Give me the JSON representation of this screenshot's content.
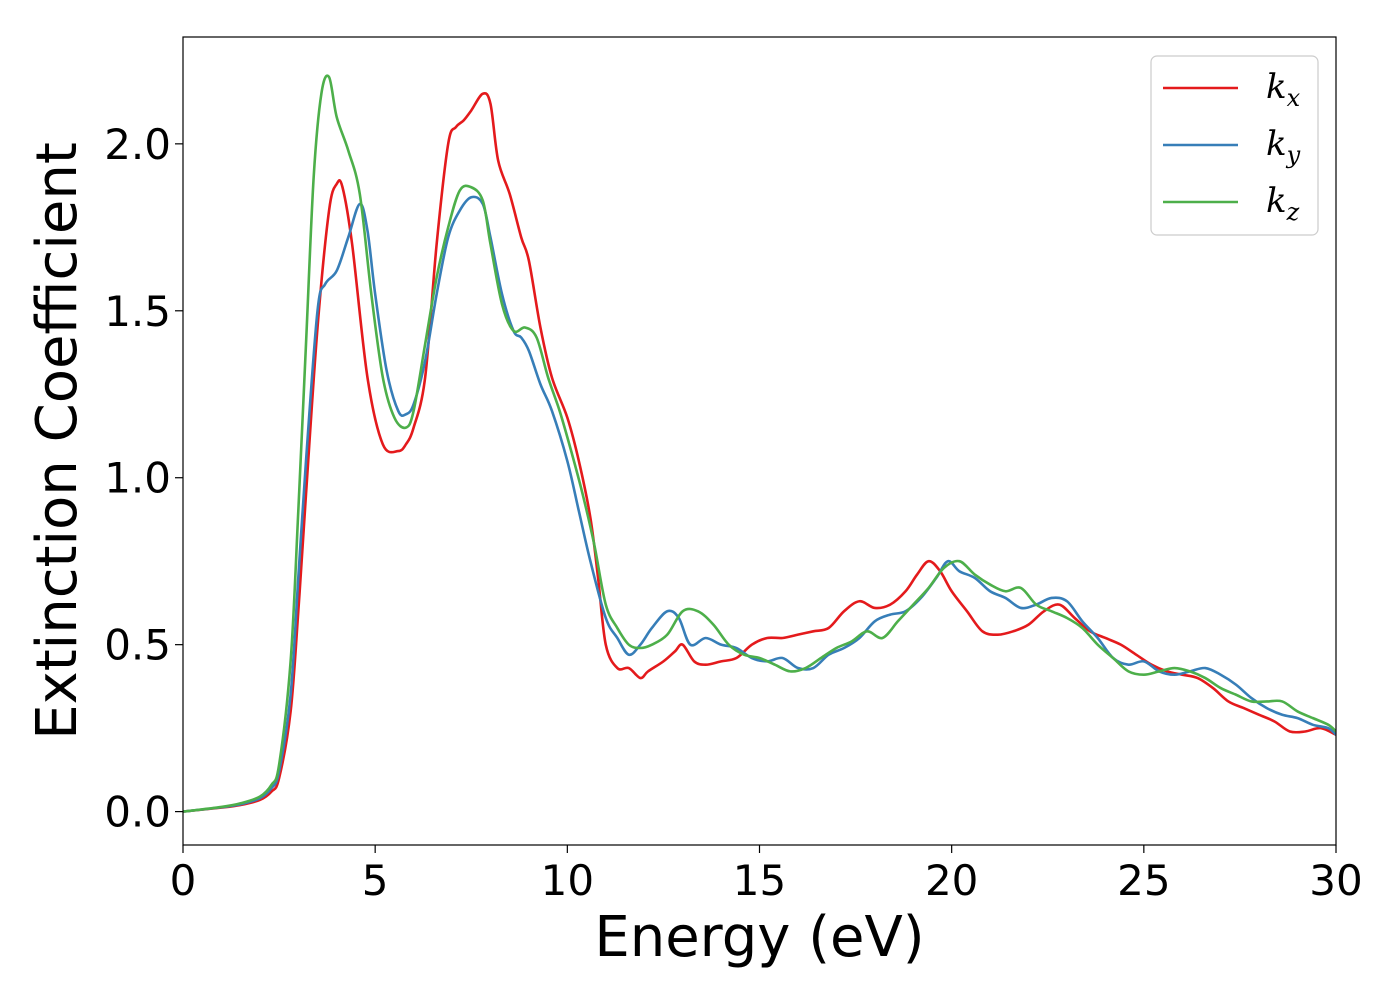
{
  "chart_data": {
    "type": "line",
    "xlabel": "Energy (eV)",
    "ylabel": "Extinction Coefficient",
    "xlim": [
      0,
      30
    ],
    "ylim": [
      -0.1,
      2.32
    ],
    "xticks": [
      0,
      5,
      10,
      15,
      20,
      25,
      30
    ],
    "yticks": [
      0.0,
      0.5,
      1.0,
      1.5,
      2.0
    ],
    "xtick_labels": [
      "0",
      "5",
      "10",
      "15",
      "20",
      "25",
      "30"
    ],
    "ytick_labels": [
      "0.0",
      "0.5",
      "1.0",
      "1.5",
      "2.0"
    ],
    "grid": false,
    "legend_position": "top-right",
    "series": [
      {
        "name": "k",
        "subscript": "x",
        "color": "#e41a1c",
        "x": [
          0,
          1,
          1.5,
          2,
          2.3,
          2.5,
          2.8,
          3.0,
          3.2,
          3.5,
          3.8,
          4.0,
          4.15,
          4.4,
          4.8,
          5.2,
          5.6,
          5.8,
          6.0,
          6.3,
          6.6,
          6.9,
          7.1,
          7.3,
          7.5,
          7.8,
          8.0,
          8.2,
          8.5,
          8.8,
          9.0,
          9.3,
          9.6,
          10.0,
          10.3,
          10.6,
          10.8,
          11.0,
          11.3,
          11.6,
          11.9,
          12.1,
          12.5,
          12.8,
          13.0,
          13.3,
          13.6,
          14.0,
          14.4,
          14.8,
          15.2,
          15.6,
          16.0,
          16.4,
          16.8,
          17.2,
          17.6,
          18.0,
          18.4,
          18.8,
          19.1,
          19.4,
          19.7,
          20.0,
          20.4,
          20.8,
          21.2,
          21.6,
          22.0,
          22.4,
          22.8,
          23.2,
          23.6,
          24.0,
          24.4,
          24.8,
          25.2,
          25.6,
          26.0,
          26.4,
          26.8,
          27.2,
          27.6,
          28.0,
          28.4,
          28.8,
          29.2,
          29.6,
          30
        ],
        "y": [
          0,
          0.012,
          0.02,
          0.035,
          0.06,
          0.1,
          0.3,
          0.6,
          0.95,
          1.45,
          1.8,
          1.88,
          1.87,
          1.7,
          1.3,
          1.1,
          1.08,
          1.1,
          1.15,
          1.3,
          1.7,
          2.0,
          2.05,
          2.07,
          2.1,
          2.15,
          2.12,
          1.95,
          1.85,
          1.72,
          1.65,
          1.45,
          1.3,
          1.18,
          1.05,
          0.88,
          0.7,
          0.5,
          0.43,
          0.43,
          0.4,
          0.42,
          0.45,
          0.48,
          0.5,
          0.45,
          0.44,
          0.45,
          0.46,
          0.5,
          0.52,
          0.52,
          0.53,
          0.54,
          0.55,
          0.6,
          0.63,
          0.61,
          0.62,
          0.66,
          0.71,
          0.75,
          0.72,
          0.66,
          0.6,
          0.54,
          0.53,
          0.54,
          0.56,
          0.6,
          0.62,
          0.58,
          0.54,
          0.52,
          0.5,
          0.47,
          0.44,
          0.42,
          0.41,
          0.4,
          0.37,
          0.33,
          0.31,
          0.29,
          0.27,
          0.24,
          0.24,
          0.25,
          0.23
        ]
      },
      {
        "name": "k",
        "subscript": "y",
        "color": "#377eb8",
        "x": [
          0,
          1,
          1.5,
          2,
          2.3,
          2.5,
          2.8,
          3.0,
          3.2,
          3.5,
          3.7,
          4.0,
          4.3,
          4.6,
          4.8,
          5.0,
          5.3,
          5.6,
          5.8,
          6.0,
          6.3,
          6.6,
          6.9,
          7.2,
          7.5,
          7.8,
          8.0,
          8.3,
          8.6,
          8.8,
          9.0,
          9.3,
          9.6,
          10.0,
          10.3,
          10.6,
          11.0,
          11.3,
          11.6,
          11.9,
          12.2,
          12.6,
          12.9,
          13.2,
          13.6,
          14.0,
          14.4,
          14.8,
          15.2,
          15.6,
          16.0,
          16.4,
          16.8,
          17.2,
          17.6,
          18.0,
          18.4,
          18.8,
          19.2,
          19.6,
          19.9,
          20.2,
          20.6,
          21.0,
          21.4,
          21.8,
          22.2,
          22.6,
          23.0,
          23.4,
          23.8,
          24.2,
          24.6,
          25.0,
          25.4,
          25.8,
          26.2,
          26.6,
          27.0,
          27.4,
          27.8,
          28.2,
          28.6,
          29.0,
          29.4,
          29.8,
          30
        ],
        "y": [
          0,
          0.013,
          0.022,
          0.04,
          0.07,
          0.12,
          0.35,
          0.7,
          1.05,
          1.5,
          1.58,
          1.62,
          1.72,
          1.82,
          1.74,
          1.55,
          1.32,
          1.2,
          1.19,
          1.22,
          1.35,
          1.55,
          1.72,
          1.8,
          1.84,
          1.82,
          1.72,
          1.55,
          1.44,
          1.42,
          1.38,
          1.28,
          1.2,
          1.05,
          0.9,
          0.75,
          0.58,
          0.52,
          0.47,
          0.5,
          0.55,
          0.6,
          0.58,
          0.5,
          0.52,
          0.5,
          0.49,
          0.46,
          0.45,
          0.46,
          0.43,
          0.43,
          0.47,
          0.49,
          0.52,
          0.57,
          0.59,
          0.6,
          0.64,
          0.7,
          0.75,
          0.72,
          0.7,
          0.66,
          0.64,
          0.61,
          0.62,
          0.64,
          0.63,
          0.57,
          0.52,
          0.46,
          0.44,
          0.45,
          0.42,
          0.41,
          0.42,
          0.43,
          0.41,
          0.38,
          0.34,
          0.31,
          0.29,
          0.28,
          0.26,
          0.25,
          0.23
        ]
      },
      {
        "name": "k",
        "subscript": "z",
        "color": "#4daf4a",
        "x": [
          0,
          1,
          1.5,
          2,
          2.3,
          2.5,
          2.8,
          3.0,
          3.2,
          3.4,
          3.6,
          3.8,
          4.0,
          4.3,
          4.6,
          4.9,
          5.2,
          5.5,
          5.8,
          6.0,
          6.3,
          6.6,
          6.9,
          7.2,
          7.5,
          7.8,
          8.0,
          8.3,
          8.6,
          8.9,
          9.2,
          9.5,
          9.8,
          10.1,
          10.4,
          10.7,
          11.0,
          11.3,
          11.6,
          11.9,
          12.2,
          12.6,
          13.0,
          13.4,
          13.8,
          14.2,
          14.6,
          15.0,
          15.4,
          15.8,
          16.2,
          16.6,
          17.0,
          17.4,
          17.8,
          18.2,
          18.6,
          19.0,
          19.4,
          19.8,
          20.2,
          20.6,
          21.0,
          21.4,
          21.8,
          22.2,
          22.6,
          23.0,
          23.4,
          23.8,
          24.2,
          24.6,
          25.0,
          25.4,
          25.8,
          26.2,
          26.6,
          27.0,
          27.4,
          27.8,
          28.2,
          28.6,
          29.0,
          29.4,
          29.8,
          30
        ],
        "y": [
          0,
          0.014,
          0.025,
          0.045,
          0.08,
          0.14,
          0.45,
          0.9,
          1.4,
          1.9,
          2.15,
          2.2,
          2.08,
          1.98,
          1.85,
          1.55,
          1.3,
          1.18,
          1.15,
          1.2,
          1.4,
          1.6,
          1.75,
          1.86,
          1.87,
          1.83,
          1.7,
          1.52,
          1.44,
          1.45,
          1.42,
          1.3,
          1.2,
          1.08,
          0.95,
          0.8,
          0.62,
          0.55,
          0.5,
          0.49,
          0.5,
          0.53,
          0.6,
          0.6,
          0.56,
          0.5,
          0.47,
          0.46,
          0.44,
          0.42,
          0.43,
          0.46,
          0.49,
          0.51,
          0.54,
          0.52,
          0.57,
          0.62,
          0.67,
          0.73,
          0.75,
          0.71,
          0.68,
          0.66,
          0.67,
          0.62,
          0.6,
          0.58,
          0.55,
          0.5,
          0.46,
          0.42,
          0.41,
          0.42,
          0.43,
          0.42,
          0.4,
          0.37,
          0.35,
          0.33,
          0.33,
          0.33,
          0.3,
          0.28,
          0.26,
          0.24
        ]
      }
    ]
  }
}
